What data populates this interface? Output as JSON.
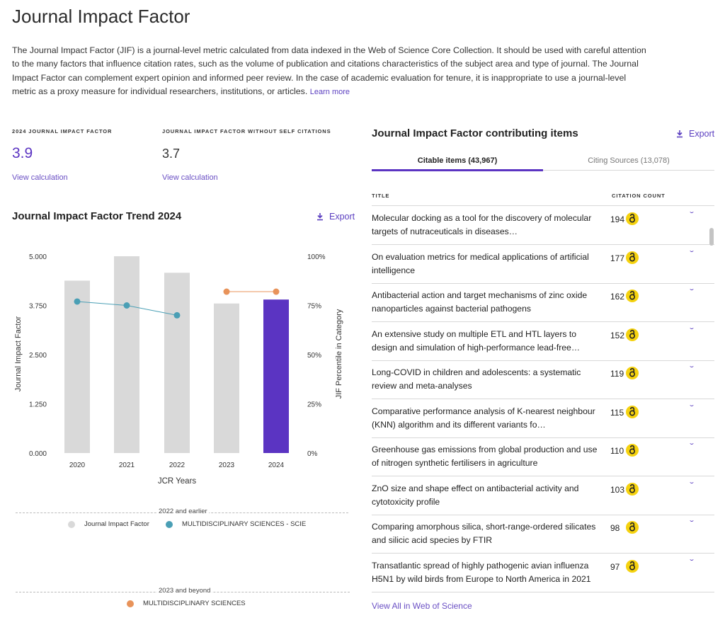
{
  "page": {
    "title": "Journal Impact Factor",
    "description": "The Journal Impact Factor (JIF) is a journal-level metric calculated from data indexed in the Web of Science Core Collection. It should be used with careful attention to the many factors that influence citation rates, such as the volume of publication and citations characteristics of the subject area and type of journal. The Journal Impact Factor can complement expert opinion and informed peer review. In the case of academic evaluation for tenure, it is inappropriate to use a journal-level metric as a proxy measure for individual researchers, institutions, or articles.",
    "learn_more": "Learn more"
  },
  "metrics": {
    "jif": {
      "label": "2024 JOURNAL IMPACT FACTOR",
      "value": "3.9",
      "link": "View calculation"
    },
    "jif_no_self": {
      "label": "JOURNAL IMPACT FACTOR WITHOUT SELF CITATIONS",
      "value": "3.7",
      "link": "View calculation"
    }
  },
  "trend": {
    "title": "Journal Impact Factor Trend 2024",
    "export_label": "Export",
    "legend": {
      "group1_label": "2022 and earlier",
      "group1_items": [
        "Journal Impact Factor",
        "MULTIDISCIPLINARY SCIENCES - SCIE"
      ],
      "group2_label": "2023 and beyond",
      "group2_items": [
        "MULTIDISCIPLINARY SCIENCES"
      ]
    }
  },
  "chart_data": {
    "type": "bar",
    "categories": [
      "2020",
      "2021",
      "2022",
      "2023",
      "2024"
    ],
    "xlabel": "JCR Years",
    "ylabel": "Journal Impact Factor",
    "y2label": "JIF Percentile in Category",
    "ylim": [
      0,
      5
    ],
    "y_ticks": [
      "0.000",
      "1.250",
      "2.500",
      "3.750",
      "5.000"
    ],
    "y2lim": [
      0,
      100
    ],
    "y2_ticks": [
      "0%",
      "25%",
      "50%",
      "75%",
      "100%"
    ],
    "grid": false,
    "series": [
      {
        "name": "Journal Impact Factor",
        "kind": "bar",
        "values": [
          4.38,
          5.0,
          4.58,
          3.8,
          3.9
        ],
        "color": "#d9d9d9",
        "highlight_color": "#5b34c2",
        "highlight_index": 4
      },
      {
        "name": "MULTIDISCIPLINARY SCIENCES - SCIE",
        "kind": "line",
        "axis": "right",
        "values": [
          77,
          75,
          70,
          null,
          null
        ],
        "color": "#4a9fb5"
      },
      {
        "name": "MULTIDISCIPLINARY SCIENCES",
        "kind": "line",
        "axis": "right",
        "values": [
          null,
          null,
          null,
          82,
          82
        ],
        "color": "#e8935a"
      }
    ]
  },
  "contributing": {
    "title": "Journal Impact Factor contributing items",
    "export_label": "Export",
    "tabs": [
      "Citable items (43,967)",
      "Citing Sources (13,078)"
    ],
    "col_title": "TITLE",
    "col_count": "CITATION COUNT",
    "rows": [
      {
        "title": "Molecular docking as a tool for the discovery of molecular targets of nutraceuticals in diseases…",
        "count": "194"
      },
      {
        "title": "On evaluation metrics for medical applications of artificial intelligence",
        "count": "177"
      },
      {
        "title": "Antibacterial action and target mechanisms of zinc oxide nanoparticles against bacterial pathogens",
        "count": "162"
      },
      {
        "title": "An extensive study on multiple ETL and HTL layers to design and simulation of high-performance lead-free…",
        "count": "152"
      },
      {
        "title": "Long-COVID in children and adolescents: a systematic review and meta-analyses",
        "count": "119"
      },
      {
        "title": "Comparative performance analysis of K-nearest neighbour (KNN) algorithm and its different variants fo…",
        "count": "115"
      },
      {
        "title": "Greenhouse gas emissions from global production and use of nitrogen synthetic fertilisers in agriculture",
        "count": "110"
      },
      {
        "title": "ZnO size and shape effect on antibacterial activity and cytotoxicity profile",
        "count": "103"
      },
      {
        "title": "Comparing amorphous silica, short-range-ordered silicates and silicic acid species by FTIR",
        "count": "98"
      },
      {
        "title": "Transatlantic spread of highly pathogenic avian influenza H5N1 by wild birds from Europe to North America in 2021",
        "count": "97"
      }
    ],
    "view_all": "View All in Web of Science"
  },
  "icons": {
    "export": "download-icon",
    "open_access": "open-access-icon",
    "expand": "chevron-down-icon"
  },
  "colors": {
    "accent": "#5b34c2",
    "bar": "#d9d9d9",
    "line_scie": "#4a9fb5",
    "line_multi": "#e8935a",
    "oa_badge": "#f5d20f"
  }
}
